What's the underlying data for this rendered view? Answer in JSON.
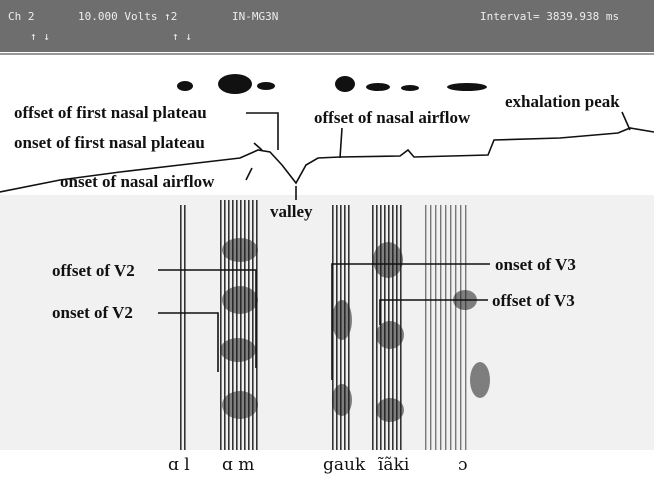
{
  "header": {
    "channel": "Ch 2",
    "scale": "10.000 Volts ↑2",
    "file": "IN-MG3N",
    "interval": "Interval= 3839.938 ms",
    "markers_left": "↑ ↓",
    "markers_right": "↑ ↓"
  },
  "annotations": [
    "offset of first nasal plateau",
    "onset of first nasal plateau",
    "onset of nasal airflow",
    "valley",
    "offset of nasal airflow",
    "exhalation peak",
    "offset of V2",
    "onset of V2",
    "onset of V3",
    "offset of V3"
  ],
  "segments": [
    "ɑ l",
    "ɑ m",
    "gauk",
    "ĩãki",
    "ɔ"
  ]
}
